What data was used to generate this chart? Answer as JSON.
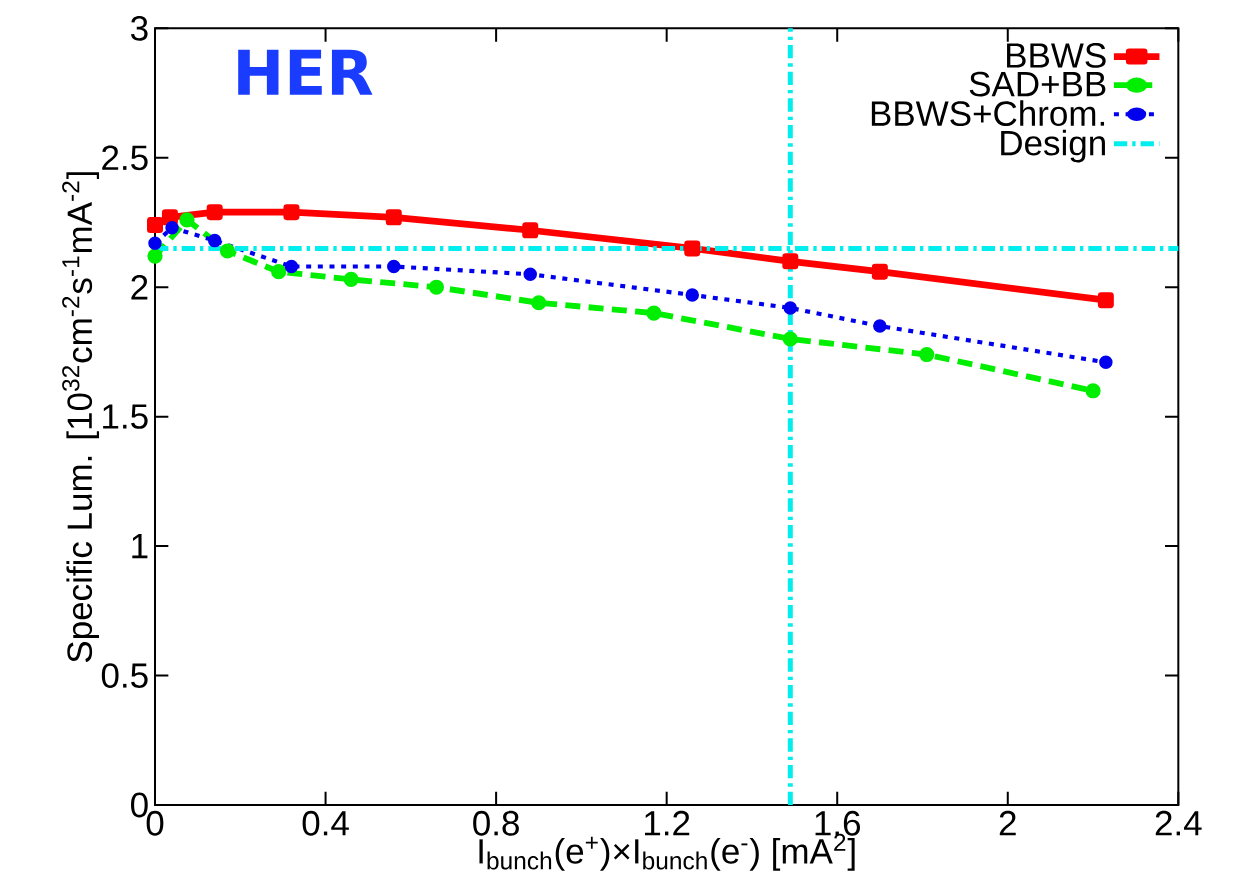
{
  "chart_data": {
    "type": "line",
    "xlabel": "I$_{bunch}$(e$^{+}$)×I$_{bunch}$(e$^{-}$) [mA$^{2}$]",
    "ylabel": "Specific Lum. [10$^{32}$cm$^{-2}$s$^{-1}$mA$^{-2}$]",
    "annotations": [
      "HER"
    ],
    "xlim": [
      0,
      2.4
    ],
    "xticks": [
      0,
      0.4,
      0.8,
      1.2,
      1.6,
      2,
      2.4
    ],
    "ylim": [
      0,
      3
    ],
    "yticks": [
      0,
      0.5,
      1,
      1.5,
      2,
      2.5,
      3
    ],
    "grid": false,
    "legend": "top right",
    "series": [
      {
        "name": "BBWS",
        "color": "#ff0000",
        "line_style": "solid",
        "marker": "square",
        "x": [
          0,
          0.035,
          0.14,
          0.32,
          0.56,
          0.88,
          1.26,
          1.49,
          1.7,
          2.23
        ],
        "values": [
          2.24,
          2.27,
          2.29,
          2.29,
          2.27,
          2.22,
          2.15,
          2.1,
          2.06,
          1.95
        ]
      },
      {
        "name": "SAD+BB",
        "color": "#00ee00",
        "line_style": "dashed",
        "marker": "circle",
        "x": [
          0,
          0.075,
          0.17,
          0.29,
          0.46,
          0.66,
          0.9,
          1.17,
          1.49,
          1.81,
          2.2
        ],
        "values": [
          2.12,
          2.26,
          2.14,
          2.06,
          2.03,
          2.0,
          1.94,
          1.9,
          1.8,
          1.74,
          1.6
        ]
      },
      {
        "name": "BBWS+Chrom.",
        "color": "#0000ee",
        "line_style": "dotted",
        "marker": "circle",
        "x": [
          0,
          0.04,
          0.14,
          0.32,
          0.56,
          0.88,
          1.26,
          1.49,
          1.7,
          2.23
        ],
        "values": [
          2.17,
          2.23,
          2.18,
          2.08,
          2.08,
          2.05,
          1.97,
          1.92,
          1.85,
          1.71
        ]
      }
    ],
    "ref_lines": [
      {
        "axis": "y",
        "value": 2.15,
        "label": "Design",
        "color": "#00eeee",
        "line_style": "dashdot"
      },
      {
        "axis": "x",
        "value": 1.49,
        "color": "#00eeee",
        "line_style": "dashdot"
      }
    ]
  }
}
